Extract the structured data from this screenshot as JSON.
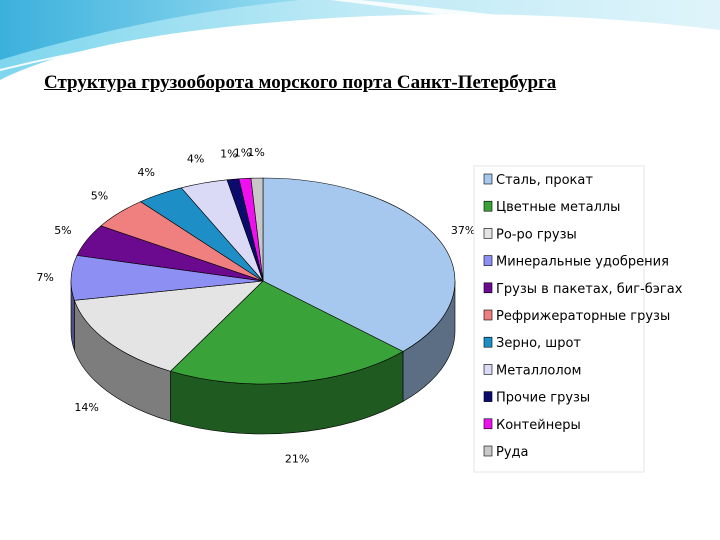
{
  "slide": {
    "title": "Структура грузооборота  морского порта Санкт-Петербурга"
  },
  "chart_data": {
    "type": "pie",
    "title": "",
    "legend_position": "right",
    "three_d": true,
    "slices": [
      {
        "name": "Сталь, прокат",
        "value": 37,
        "label": "37%",
        "color": "#a6c8ee"
      },
      {
        "name": "Цветные металлы",
        "value": 21,
        "label": "21%",
        "color": "#39a33a"
      },
      {
        "name": "Ро-ро грузы",
        "value": 14,
        "label": "14%",
        "color": "#e4e4e4"
      },
      {
        "name": "Минеральные удобрения",
        "value": 7,
        "label": "7%",
        "color": "#8e8ff2"
      },
      {
        "name": "Грузы в пакетах, биг-бэгах",
        "value": 5,
        "label": "5%",
        "color": "#6b0a8e"
      },
      {
        "name": "Рефрижераторные грузы",
        "value": 5,
        "label": "5%",
        "color": "#f07f7f"
      },
      {
        "name": "Зерно, шрот",
        "value": 4,
        "label": "4%",
        "color": "#1e8fc6"
      },
      {
        "name": "Металлолом",
        "value": 4,
        "label": "4%",
        "color": "#dadaf6"
      },
      {
        "name": "Прочие грузы",
        "value": 1,
        "label": "1%",
        "color": "#0b0b6e"
      },
      {
        "name": "Контейнеры",
        "value": 1,
        "label": "1%",
        "color": "#ee10ee"
      },
      {
        "name": "Руда",
        "value": 1,
        "label": "1%",
        "color": "#c8c8c8"
      }
    ]
  }
}
